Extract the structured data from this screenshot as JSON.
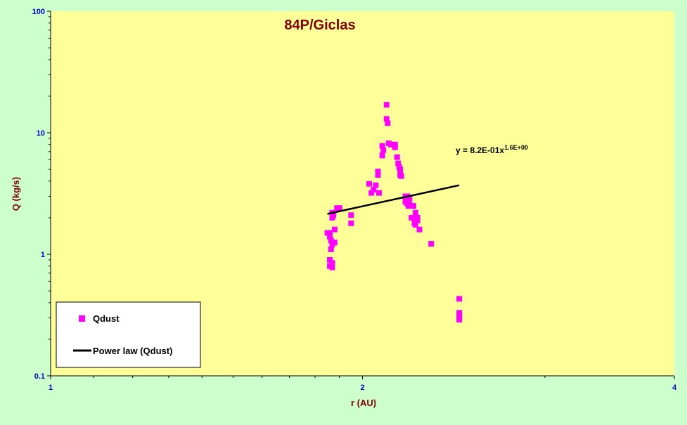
{
  "colors": {
    "background": "#ccffcc",
    "plot_area": "#ffff99",
    "title": "#800000",
    "axis_label": "#800000",
    "tick_label": "#0000cc",
    "series_marker": "#ff00ff",
    "fit_line": "#000000"
  },
  "chart_data": {
    "type": "scatter",
    "title": "84P/Giclas",
    "xlabel": "r (AU)",
    "ylabel": "Q (kg/s)",
    "xscale": "log",
    "yscale": "log",
    "xlim": [
      1,
      4
    ],
    "ylim": [
      0.1,
      100
    ],
    "xticks": [
      "1",
      "2",
      "4"
    ],
    "yticks": [
      "0.1",
      "1",
      "10",
      "100"
    ],
    "grid": false,
    "legend": {
      "position": "bottom-left",
      "entries": [
        "Qdust",
        "Power law (Qdust)"
      ]
    },
    "equation": {
      "text": "y = 8.2E-01x",
      "exponent": "1.6E+00"
    },
    "series": [
      {
        "name": "Qdust",
        "kind": "scatter",
        "x": [
          1.85,
          1.86,
          1.86,
          1.86,
          1.86,
          1.865,
          1.865,
          1.87,
          1.87,
          1.87,
          1.87,
          1.87,
          1.875,
          1.88,
          1.88,
          1.89,
          1.9,
          1.95,
          1.95,
          2.03,
          2.04,
          2.05,
          2.06,
          2.07,
          2.07,
          2.075,
          2.09,
          2.09,
          2.095,
          2.11,
          2.11,
          2.115,
          2.12,
          2.13,
          2.15,
          2.15,
          2.16,
          2.165,
          2.17,
          2.175,
          2.175,
          2.18,
          2.2,
          2.2,
          2.21,
          2.21,
          2.215,
          2.22,
          2.22,
          2.23,
          2.23,
          2.24,
          2.24,
          2.245,
          2.25,
          2.25,
          2.25,
          2.26,
          2.26,
          2.27,
          2.33,
          2.48,
          2.48,
          2.48,
          2.48
        ],
        "y": [
          1.5,
          1.5,
          1.4,
          0.9,
          0.8,
          1.3,
          1.1,
          1.2,
          0.85,
          0.78,
          2.0,
          2.2,
          2.1,
          1.6,
          1.25,
          2.4,
          2.4,
          2.1,
          1.8,
          3.8,
          3.2,
          3.4,
          3.7,
          4.8,
          4.5,
          3.2,
          6.5,
          7.8,
          7.2,
          17.0,
          13.0,
          12.0,
          8.2,
          8.0,
          8.0,
          7.6,
          6.3,
          5.6,
          5.2,
          5.0,
          4.5,
          4.4,
          3.0,
          2.7,
          3.0,
          2.6,
          2.5,
          2.9,
          2.6,
          2.5,
          2.0,
          2.5,
          2.0,
          1.8,
          2.2,
          1.9,
          1.75,
          2.0,
          1.9,
          1.6,
          1.22,
          0.43,
          0.33,
          0.31,
          0.29
        ]
      },
      {
        "name": "Power law (Qdust)",
        "kind": "line",
        "x": [
          1.85,
          2.48
        ],
        "y": [
          2.15,
          3.7
        ]
      }
    ]
  }
}
